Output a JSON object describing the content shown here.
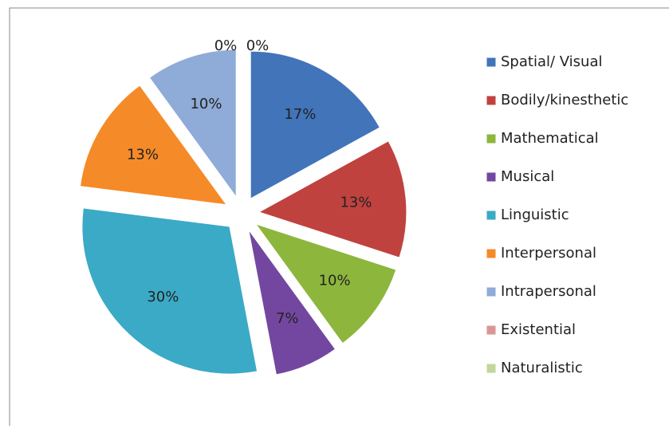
{
  "chart_data": {
    "type": "pie",
    "categories": [
      "Spatial/ Visual",
      "Bodily/kinesthetic",
      "Mathematical",
      "Musical",
      "Linguistic",
      "Interpersonal",
      "Intrapersonal",
      "Existential",
      "Naturalistic"
    ],
    "values": [
      17,
      13,
      10,
      7,
      30,
      13,
      10,
      0,
      0
    ],
    "value_labels": [
      "17%",
      "13%",
      "10%",
      "7%",
      "30%",
      "13%",
      "10%",
      "0%",
      "0%"
    ],
    "colors": [
      "#4174b9",
      "#c0423f",
      "#8db63c",
      "#7347a0",
      "#3aaac6",
      "#f58a28",
      "#8fabd8",
      "#d99694",
      "#c3d69b"
    ],
    "legend": "right"
  }
}
